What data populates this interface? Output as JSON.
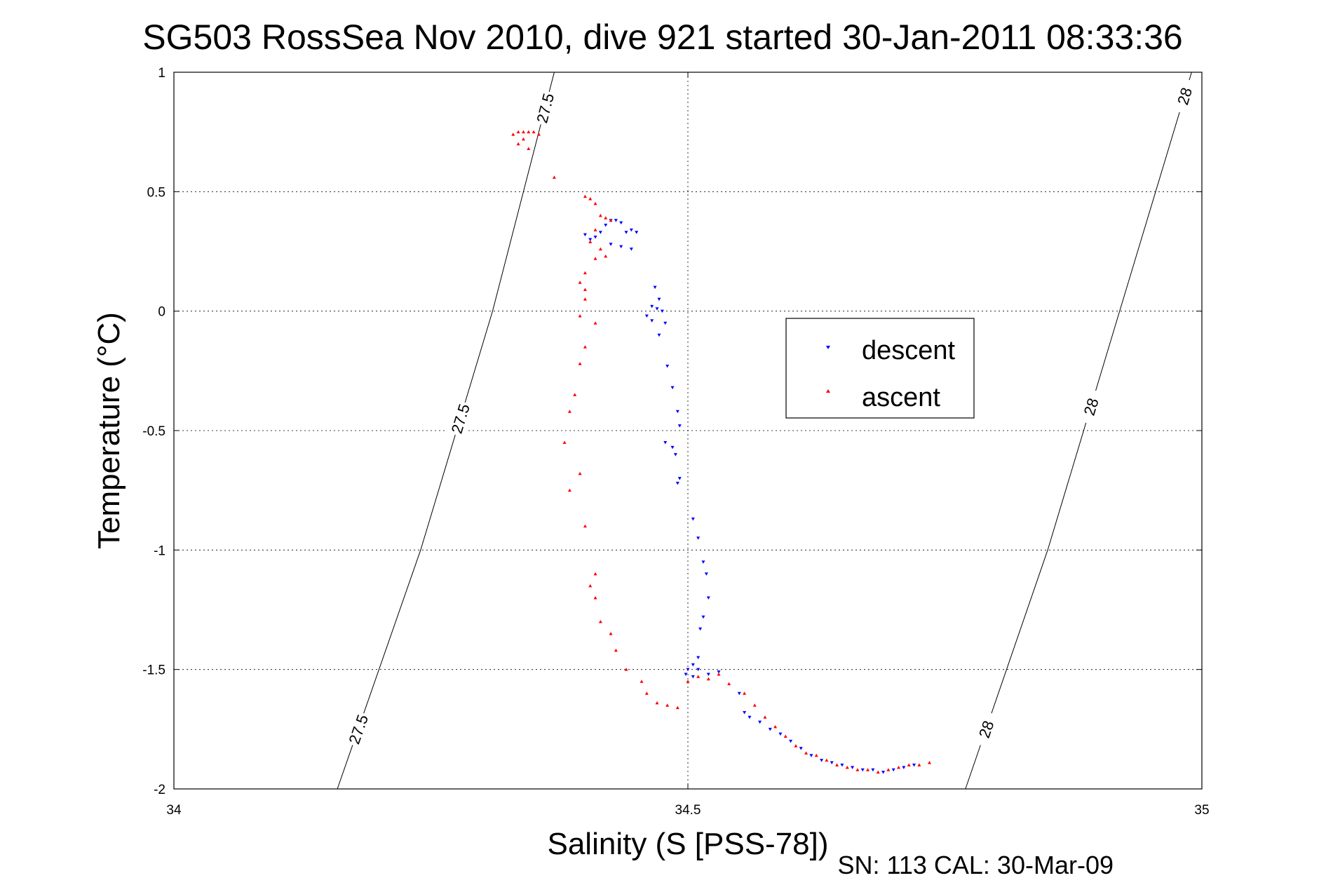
{
  "figure": {
    "title": "SG503 RossSea Nov 2010, dive 921 started 30-Jan-2011 08:33:36",
    "footer": "SN: 113  CAL: 30-Mar-09"
  },
  "chart_data": {
    "type": "scatter",
    "title": "SG503 RossSea Nov 2010, dive 921 started 30-Jan-2011 08:33:36",
    "xlabel": "Salinity (S [PSS-78])",
    "ylabel": "Temperature (°C)",
    "xlim": [
      34,
      35
    ],
    "ylim": [
      -2,
      1
    ],
    "xticks": [
      34,
      34.5,
      35
    ],
    "xtick_labels": [
      "34",
      "34.5",
      "35"
    ],
    "yticks": [
      -2,
      -1.5,
      -1,
      -0.5,
      0,
      0.5,
      1
    ],
    "ytick_labels": [
      "-2",
      "-1.5",
      "-1",
      "-0.5",
      "0",
      "0.5",
      "1"
    ],
    "grid": true,
    "legend_position": "center-right",
    "series": [
      {
        "name": "descent",
        "marker": "triangle-down",
        "color": "#0000ff",
        "points": [
          [
            34.4,
            0.32
          ],
          [
            34.405,
            0.3
          ],
          [
            34.41,
            0.31
          ],
          [
            34.415,
            0.33
          ],
          [
            34.42,
            0.36
          ],
          [
            34.425,
            0.38
          ],
          [
            34.43,
            0.38
          ],
          [
            34.435,
            0.37
          ],
          [
            34.44,
            0.33
          ],
          [
            34.445,
            0.34
          ],
          [
            34.45,
            0.33
          ],
          [
            34.425,
            0.28
          ],
          [
            34.435,
            0.27
          ],
          [
            34.445,
            0.26
          ],
          [
            34.468,
            0.1
          ],
          [
            34.472,
            0.05
          ],
          [
            34.465,
            0.02
          ],
          [
            34.47,
            0.01
          ],
          [
            34.475,
            0.0
          ],
          [
            34.46,
            -0.02
          ],
          [
            34.465,
            -0.04
          ],
          [
            34.478,
            -0.05
          ],
          [
            34.472,
            -0.1
          ],
          [
            34.48,
            -0.23
          ],
          [
            34.485,
            -0.32
          ],
          [
            34.49,
            -0.42
          ],
          [
            34.492,
            -0.48
          ],
          [
            34.478,
            -0.55
          ],
          [
            34.485,
            -0.57
          ],
          [
            34.488,
            -0.6
          ],
          [
            34.492,
            -0.7
          ],
          [
            34.49,
            -0.72
          ],
          [
            34.505,
            -0.87
          ],
          [
            34.51,
            -0.95
          ],
          [
            34.515,
            -1.05
          ],
          [
            34.518,
            -1.1
          ],
          [
            34.52,
            -1.2
          ],
          [
            34.515,
            -1.28
          ],
          [
            34.512,
            -1.33
          ],
          [
            34.51,
            -1.45
          ],
          [
            34.505,
            -1.48
          ],
          [
            34.5,
            -1.5
          ],
          [
            34.498,
            -1.52
          ],
          [
            34.505,
            -1.53
          ],
          [
            34.51,
            -1.5
          ],
          [
            34.52,
            -1.52
          ],
          [
            34.53,
            -1.51
          ],
          [
            34.55,
            -1.6
          ],
          [
            34.555,
            -1.68
          ],
          [
            34.56,
            -1.7
          ],
          [
            34.57,
            -1.72
          ],
          [
            34.58,
            -1.75
          ],
          [
            34.59,
            -1.77
          ],
          [
            34.6,
            -1.8
          ],
          [
            34.61,
            -1.83
          ],
          [
            34.62,
            -1.86
          ],
          [
            34.63,
            -1.88
          ],
          [
            34.64,
            -1.89
          ],
          [
            34.65,
            -1.9
          ],
          [
            34.66,
            -1.91
          ],
          [
            34.67,
            -1.92
          ],
          [
            34.68,
            -1.92
          ],
          [
            34.69,
            -1.93
          ],
          [
            34.7,
            -1.92
          ],
          [
            34.71,
            -1.91
          ],
          [
            34.72,
            -1.9
          ]
        ]
      },
      {
        "name": "ascent",
        "marker": "triangle-up",
        "color": "#ff0000",
        "points": [
          [
            34.33,
            0.74
          ],
          [
            34.335,
            0.75
          ],
          [
            34.34,
            0.75
          ],
          [
            34.345,
            0.75
          ],
          [
            34.35,
            0.75
          ],
          [
            34.355,
            0.74
          ],
          [
            34.34,
            0.72
          ],
          [
            34.335,
            0.7
          ],
          [
            34.345,
            0.68
          ],
          [
            34.37,
            0.56
          ],
          [
            34.4,
            0.48
          ],
          [
            34.405,
            0.47
          ],
          [
            34.41,
            0.45
          ],
          [
            34.415,
            0.4
          ],
          [
            34.42,
            0.39
          ],
          [
            34.425,
            0.38
          ],
          [
            34.41,
            0.34
          ],
          [
            34.405,
            0.29
          ],
          [
            34.415,
            0.26
          ],
          [
            34.42,
            0.23
          ],
          [
            34.41,
            0.22
          ],
          [
            34.4,
            0.16
          ],
          [
            34.395,
            0.12
          ],
          [
            34.4,
            0.09
          ],
          [
            34.4,
            0.05
          ],
          [
            34.395,
            -0.02
          ],
          [
            34.41,
            -0.05
          ],
          [
            34.4,
            -0.15
          ],
          [
            34.395,
            -0.22
          ],
          [
            34.39,
            -0.35
          ],
          [
            34.385,
            -0.42
          ],
          [
            34.38,
            -0.55
          ],
          [
            34.395,
            -0.68
          ],
          [
            34.385,
            -0.75
          ],
          [
            34.4,
            -0.9
          ],
          [
            34.41,
            -1.1
          ],
          [
            34.405,
            -1.15
          ],
          [
            34.41,
            -1.2
          ],
          [
            34.415,
            -1.3
          ],
          [
            34.425,
            -1.35
          ],
          [
            34.43,
            -1.42
          ],
          [
            34.44,
            -1.5
          ],
          [
            34.455,
            -1.55
          ],
          [
            34.46,
            -1.6
          ],
          [
            34.47,
            -1.64
          ],
          [
            34.48,
            -1.65
          ],
          [
            34.49,
            -1.66
          ],
          [
            34.5,
            -1.55
          ],
          [
            34.51,
            -1.53
          ],
          [
            34.52,
            -1.54
          ],
          [
            34.53,
            -1.52
          ],
          [
            34.54,
            -1.56
          ],
          [
            34.555,
            -1.6
          ],
          [
            34.565,
            -1.65
          ],
          [
            34.575,
            -1.7
          ],
          [
            34.585,
            -1.74
          ],
          [
            34.595,
            -1.78
          ],
          [
            34.605,
            -1.82
          ],
          [
            34.615,
            -1.85
          ],
          [
            34.625,
            -1.86
          ],
          [
            34.635,
            -1.88
          ],
          [
            34.645,
            -1.9
          ],
          [
            34.655,
            -1.91
          ],
          [
            34.665,
            -1.92
          ],
          [
            34.675,
            -1.92
          ],
          [
            34.685,
            -1.93
          ],
          [
            34.695,
            -1.92
          ],
          [
            34.705,
            -1.91
          ],
          [
            34.715,
            -1.9
          ],
          [
            34.725,
            -1.9
          ],
          [
            34.735,
            -1.89
          ]
        ]
      }
    ],
    "contours": [
      {
        "label": "27.5",
        "points": [
          [
            34.159,
            -2.0
          ],
          [
            34.24,
            -1.0
          ],
          [
            34.31,
            0.0
          ],
          [
            34.37,
            1.0
          ]
        ],
        "label_at": [
          -1.75,
          -0.45,
          0.85
        ]
      },
      {
        "label": "28",
        "points": [
          [
            34.77,
            -2.0
          ],
          [
            34.85,
            -1.0
          ],
          [
            34.92,
            0.0
          ],
          [
            34.99,
            1.0
          ]
        ],
        "label_at": [
          -1.75,
          -0.4,
          0.9
        ]
      }
    ]
  }
}
